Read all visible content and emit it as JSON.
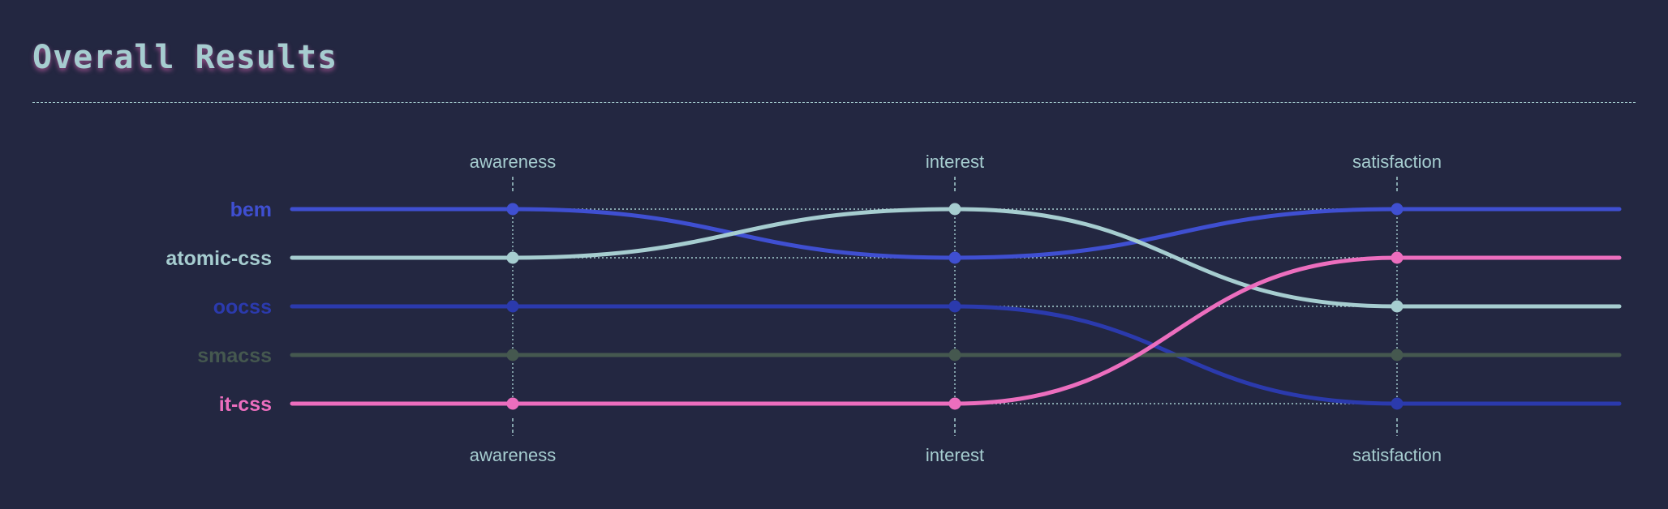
{
  "page": {
    "title": "Overall Results"
  },
  "colors": {
    "background": "#232741",
    "text": "#a6cdd0",
    "title_shadow": "#ec6ebe",
    "guide": "#a6cdd0"
  },
  "chart_data": {
    "type": "line",
    "subtype": "bump",
    "categories": [
      "awareness",
      "interest",
      "satisfaction"
    ],
    "rank_order": "1 = top",
    "series": [
      {
        "name": "bem",
        "color": "#3f4fd1",
        "ranks": [
          1,
          2,
          1
        ]
      },
      {
        "name": "atomic-css",
        "color": "#a6cdd0",
        "ranks": [
          2,
          1,
          3
        ]
      },
      {
        "name": "oocss",
        "color": "#2b3aad",
        "ranks": [
          3,
          3,
          5
        ]
      },
      {
        "name": "smacss",
        "color": "#45584f",
        "ranks": [
          4,
          4,
          4
        ]
      },
      {
        "name": "it-css",
        "color": "#ec6ebe",
        "ranks": [
          5,
          5,
          2
        ]
      }
    ],
    "grid": true,
    "legend": "left labels"
  }
}
